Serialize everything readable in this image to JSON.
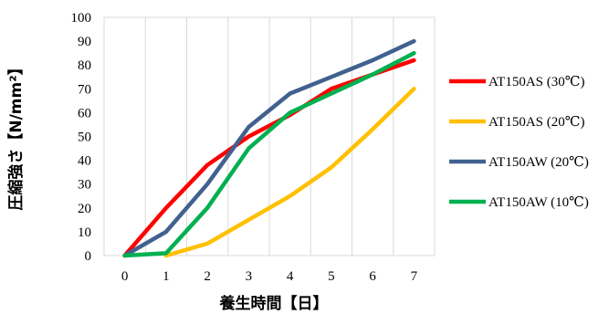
{
  "chart_data": {
    "type": "line",
    "title": "",
    "xlabel": "養生時間【日】",
    "ylabel": "圧縮強さ【N/mm²】",
    "x": [
      0,
      1,
      2,
      3,
      4,
      5,
      6,
      7
    ],
    "x_ticks": [
      "0",
      "1",
      "2",
      "3",
      "4",
      "5",
      "6",
      "7"
    ],
    "y_ticks": [
      "0",
      "10",
      "20",
      "30",
      "40",
      "50",
      "60",
      "70",
      "80",
      "90",
      "100"
    ],
    "xlim": [
      -0.5,
      7.5
    ],
    "ylim": [
      0,
      100
    ],
    "grid": "vertical",
    "legend_position": "right",
    "series": [
      {
        "name": "AT150AS (30℃)",
        "color": "#ff0000",
        "x": [
          0,
          1,
          2,
          3,
          4,
          5,
          6,
          7
        ],
        "values": [
          0,
          20,
          38,
          50,
          59,
          70,
          76,
          82
        ]
      },
      {
        "name": "AT150AS (20℃)",
        "color": "#ffc000",
        "x": [
          1,
          2,
          3,
          4,
          5,
          6,
          7
        ],
        "values": [
          0,
          5,
          15,
          25,
          37,
          53,
          70
        ]
      },
      {
        "name": "AT150AW (20℃)",
        "color": "#41618f",
        "x": [
          0,
          1,
          2,
          3,
          4,
          5,
          6,
          7
        ],
        "values": [
          0,
          10,
          30,
          54,
          68,
          75,
          82,
          90
        ]
      },
      {
        "name": "AT150AW (10℃)",
        "color": "#00b050",
        "x": [
          0,
          1,
          2,
          3,
          4,
          5,
          6,
          7
        ],
        "values": [
          0,
          1,
          20,
          45,
          60,
          68,
          76,
          85
        ]
      }
    ]
  }
}
